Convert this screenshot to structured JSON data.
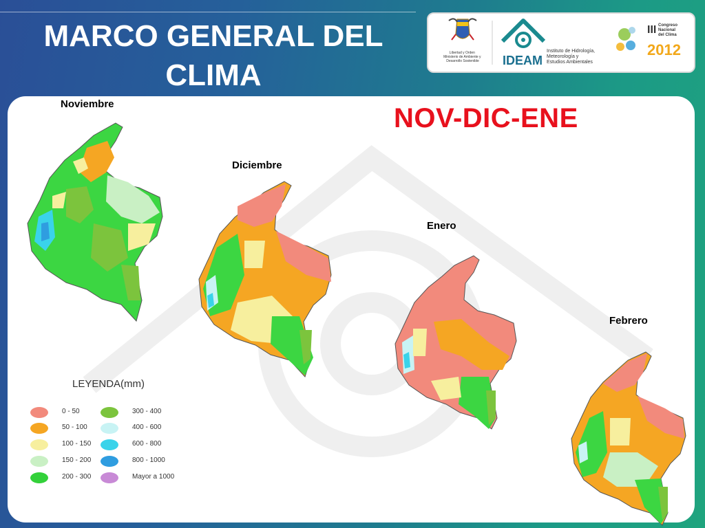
{
  "title": {
    "line1": "MARCO GENERAL DEL",
    "line2": "CLIMA"
  },
  "headline": "NOV-DIC-ENE",
  "months": {
    "nov": "Noviembre",
    "dic": "Diciembre",
    "ene": "Enero",
    "feb": "Febrero"
  },
  "logos": {
    "colombia_text": "Libertad y Orden\nMinisterio de Ambiente y\nDesarrollo Sostenible",
    "ideam_name": "IDEAM",
    "ideam_text": "Instituto de Hidrología,\nMeteorología y\nEstudios Ambientales",
    "congreso_roman": "III",
    "congreso_text": "Congreso\nNacional\ndel Clima",
    "congreso_year": "2012"
  },
  "legend": {
    "title": "LEYENDA(mm)",
    "items": [
      {
        "label": "0 - 50",
        "color": "#f28a7c"
      },
      {
        "label": "50 - 100",
        "color": "#f5a623"
      },
      {
        "label": "100 - 150",
        "color": "#f7ef9e"
      },
      {
        "label": "150 - 200",
        "color": "#c9f0c4"
      },
      {
        "label": "200 - 300",
        "color": "#33d13a"
      },
      {
        "label": "300 - 400",
        "color": "#7cc43d"
      },
      {
        "label": "400 - 600",
        "color": "#c8f3f4"
      },
      {
        "label": "600 - 800",
        "color": "#3ad3ea"
      },
      {
        "label": "800 - 1000",
        "color": "#2f9de0"
      },
      {
        "label": "Mayor a 1000",
        "color": "#c88ad6"
      }
    ]
  }
}
